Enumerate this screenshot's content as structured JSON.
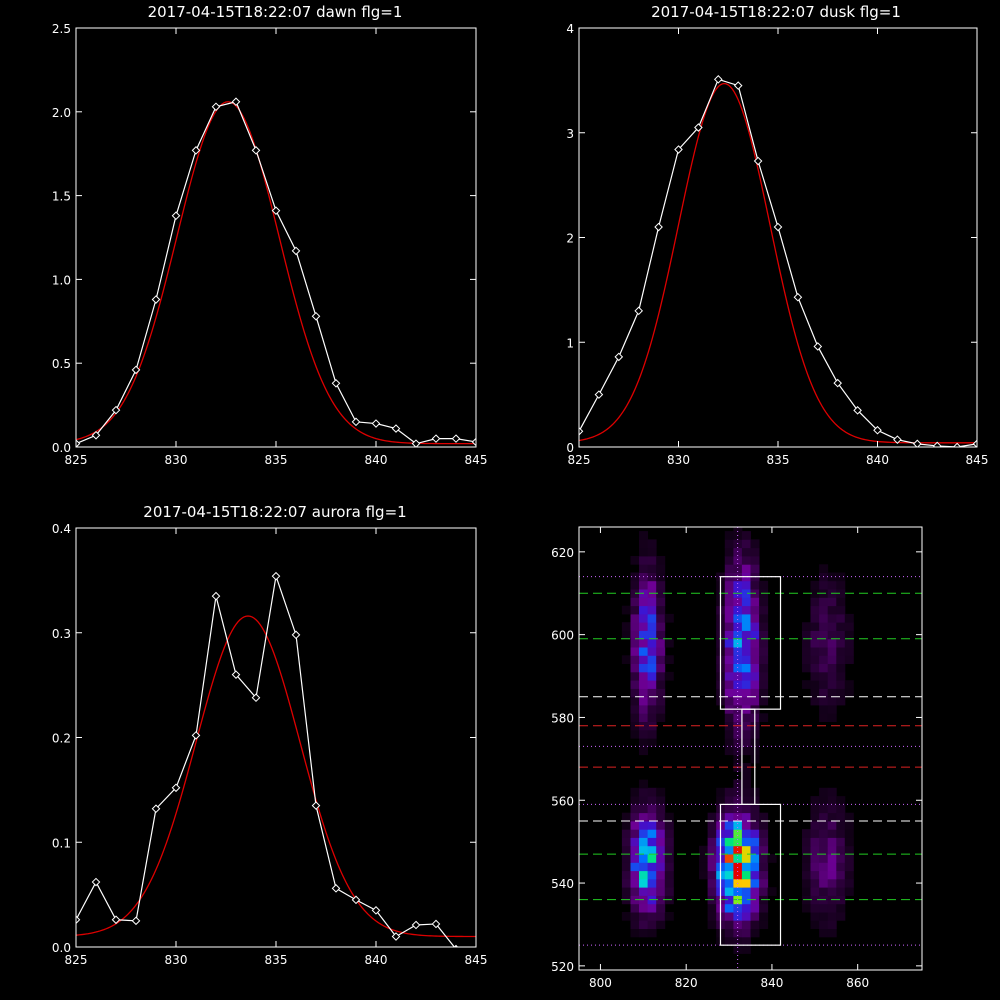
{
  "chart_data": [
    {
      "type": "line",
      "title": "2017-04-15T18:22:07 dawn flg=1",
      "xlim": [
        825,
        845
      ],
      "ylim": [
        0,
        2.5
      ],
      "xticks": [
        825,
        830,
        835,
        840,
        845
      ],
      "yticks": [
        0.0,
        0.5,
        1.0,
        1.5,
        2.0,
        2.5
      ],
      "ytick_labels": [
        "0.0",
        "0.5",
        "1.0",
        "1.5",
        "2.0",
        "2.5"
      ],
      "series": [
        {
          "kind": "data",
          "color": "#ffffff",
          "marker": "diamond",
          "x": [
            825,
            826,
            827,
            828,
            829,
            830,
            831,
            832,
            833,
            834,
            835,
            836,
            837,
            838,
            839,
            840,
            841,
            842,
            843,
            844,
            845
          ],
          "y": [
            0.02,
            0.07,
            0.22,
            0.46,
            0.88,
            1.38,
            1.77,
            2.03,
            2.06,
            1.77,
            1.41,
            1.17,
            0.78,
            0.38,
            0.15,
            0.14,
            0.11,
            0.02,
            0.05,
            0.05,
            0.03
          ]
        },
        {
          "kind": "fit",
          "color": "#dd0000",
          "gauss": {
            "a": 2.04,
            "mu": 832.6,
            "sigma": 2.55,
            "c": 0.02
          }
        }
      ]
    },
    {
      "type": "line",
      "title": "2017-04-15T18:22:07 dusk flg=1",
      "xlim": [
        825,
        845
      ],
      "ylim": [
        0,
        4
      ],
      "xticks": [
        825,
        830,
        835,
        840,
        845
      ],
      "yticks": [
        0,
        1,
        2,
        3,
        4
      ],
      "ytick_labels": [
        "0",
        "1",
        "2",
        "3",
        "4"
      ],
      "series": [
        {
          "kind": "data",
          "color": "#ffffff",
          "marker": "diamond",
          "x": [
            825,
            826,
            827,
            828,
            829,
            830,
            831,
            832,
            833,
            834,
            835,
            836,
            837,
            838,
            839,
            840,
            841,
            842,
            843,
            844,
            845
          ],
          "y": [
            0.15,
            0.5,
            0.86,
            1.3,
            2.1,
            2.84,
            3.05,
            3.51,
            3.45,
            2.73,
            2.1,
            1.43,
            0.96,
            0.61,
            0.35,
            0.16,
            0.07,
            0.03,
            0.01,
            0.0,
            0.03
          ]
        },
        {
          "kind": "fit",
          "color": "#dd0000",
          "gauss": {
            "a": 3.43,
            "mu": 832.3,
            "sigma": 2.3,
            "c": 0.04
          }
        }
      ]
    },
    {
      "type": "line",
      "title": "2017-04-15T18:22:07 aurora flg=1",
      "xlim": [
        825,
        845
      ],
      "ylim": [
        0,
        0.4
      ],
      "xticks": [
        825,
        830,
        835,
        840,
        845
      ],
      "yticks": [
        0.0,
        0.1,
        0.2,
        0.3,
        0.4
      ],
      "ytick_labels": [
        "0.0",
        "0.1",
        "0.2",
        "0.3",
        "0.4"
      ],
      "series": [
        {
          "kind": "data",
          "color": "#ffffff",
          "marker": "diamond",
          "x": [
            825,
            826,
            827,
            828,
            829,
            830,
            831,
            832,
            833,
            834,
            835,
            836,
            837,
            838,
            839,
            840,
            841,
            842,
            843,
            844,
            845
          ],
          "y": [
            0.026,
            0.062,
            0.026,
            0.025,
            0.132,
            0.152,
            0.202,
            0.335,
            0.26,
            0.238,
            0.354,
            0.298,
            0.135,
            0.056,
            0.045,
            0.035,
            0.01,
            0.021,
            0.022,
            -0.002,
            -0.006
          ]
        },
        {
          "kind": "fit",
          "color": "#dd0000",
          "gauss": {
            "a": 0.306,
            "mu": 833.6,
            "sigma": 2.6,
            "c": 0.01
          }
        }
      ]
    },
    {
      "type": "heatmap",
      "xlim": [
        795,
        875
      ],
      "ylim": [
        519,
        626
      ],
      "xticks": [
        800,
        820,
        840,
        860
      ],
      "yticks": [
        520,
        540,
        560,
        580,
        600,
        620
      ],
      "blobs": [
        {
          "x": 811,
          "y": 545,
          "sx": 2.8,
          "sy": 8,
          "amp": 0.62
        },
        {
          "x": 832,
          "y": 544,
          "sx": 3.2,
          "sy": 8,
          "amp": 1.0
        },
        {
          "x": 811,
          "y": 598,
          "sx": 2.3,
          "sy": 12,
          "amp": 0.42
        },
        {
          "x": 833,
          "y": 598,
          "sx": 2.7,
          "sy": 13,
          "amp": 0.55
        },
        {
          "x": 853,
          "y": 545,
          "sx": 3.5,
          "sy": 10,
          "amp": 0.2
        },
        {
          "x": 853,
          "y": 598,
          "sx": 3.5,
          "sy": 11,
          "amp": 0.16
        }
      ],
      "vline": {
        "x": 832,
        "color": "#cc66ff",
        "style": "dotted"
      },
      "boxes": [
        {
          "x0": 828,
          "x1": 842,
          "y0": 582,
          "y1": 614,
          "color": "#ffffff"
        },
        {
          "x0": 828,
          "x1": 842,
          "y0": 525,
          "y1": 559,
          "color": "#ffffff"
        },
        {
          "x0": 833,
          "x1": 836,
          "y0": 559,
          "y1": 582,
          "color": "#ffffff"
        }
      ],
      "hlines": [
        {
          "y": 614,
          "color": "#cc66ff",
          "style": "dotted"
        },
        {
          "y": 525,
          "color": "#cc66ff",
          "style": "dotted"
        },
        {
          "y": 559,
          "color": "#cc66ff",
          "style": "dotted"
        },
        {
          "y": 573,
          "color": "#cc66ff",
          "style": "dotted"
        },
        {
          "y": 610,
          "color": "#22cc22",
          "style": "dashed"
        },
        {
          "y": 599,
          "color": "#22cc22",
          "style": "dashed"
        },
        {
          "y": 547,
          "color": "#22cc22",
          "style": "dashed"
        },
        {
          "y": 536,
          "color": "#22cc22",
          "style": "dashed"
        },
        {
          "y": 585,
          "color": "#ffffff",
          "style": "dashed"
        },
        {
          "y": 555,
          "color": "#ffffff",
          "style": "dashed"
        },
        {
          "y": 578,
          "color": "#dd2222",
          "style": "dashed"
        },
        {
          "y": 568,
          "color": "#dd2222",
          "style": "dashed"
        }
      ]
    }
  ]
}
